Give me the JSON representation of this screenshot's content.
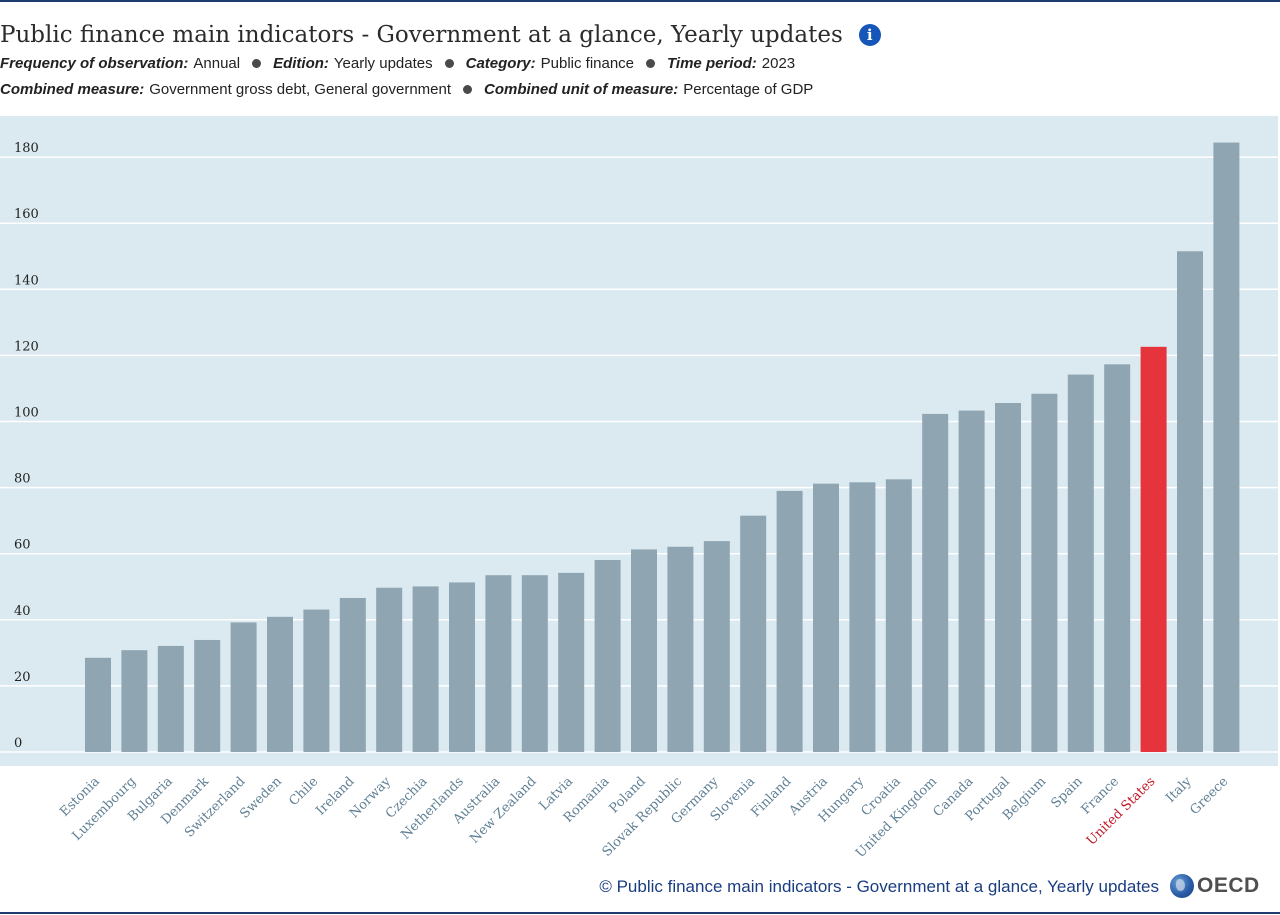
{
  "header": {
    "title": "Public finance main indicators - Government at a glance, Yearly updates",
    "info_icon": "info-icon",
    "filters_row1": [
      {
        "label": "Frequency of observation:",
        "value": "Annual"
      },
      {
        "label": "Edition:",
        "value": "Yearly updates"
      },
      {
        "label": "Category:",
        "value": "Public finance"
      },
      {
        "label": "Time period:",
        "value": "2023"
      }
    ],
    "filters_row2": [
      {
        "label": "Combined measure:",
        "value": "Government gross debt, General government"
      },
      {
        "label": "Combined unit of measure:",
        "value": "Percentage of GDP"
      }
    ]
  },
  "colors": {
    "bar": "#8fa5b2",
    "highlight": "#e6343d",
    "plot_background": "#dbeaf1",
    "gridline": "#ffffff",
    "tick_text": "#222222",
    "category_text": "#5f7f94",
    "highlight_text": "#c01826"
  },
  "chart_data": {
    "type": "bar",
    "title": "Public finance main indicators - Government at a glance, Yearly updates",
    "xlabel": "",
    "ylabel": "",
    "ylim": [
      0,
      186
    ],
    "yticks": [
      0,
      20,
      40,
      60,
      80,
      100,
      120,
      140,
      160,
      180
    ],
    "grid": true,
    "highlight": "United States",
    "categories": [
      "Estonia",
      "Luxembourg",
      "Bulgaria",
      "Denmark",
      "Switzerland",
      "Sweden",
      "Chile",
      "Ireland",
      "Norway",
      "Czechia",
      "Netherlands",
      "Australia",
      "New Zealand",
      "Latvia",
      "Romania",
      "Poland",
      "Slovak Republic",
      "Germany",
      "Slovenia",
      "Finland",
      "Austria",
      "Hungary",
      "Croatia",
      "United Kingdom",
      "Canada",
      "Portugal",
      "Belgium",
      "Spain",
      "France",
      "United States",
      "Italy",
      "Greece"
    ],
    "values": [
      28.5,
      30.8,
      32.1,
      33.9,
      39.2,
      40.9,
      43.1,
      46.6,
      49.7,
      50.1,
      51.3,
      53.5,
      53.5,
      54.2,
      58.1,
      61.3,
      62.1,
      63.8,
      71.5,
      79.0,
      81.2,
      81.6,
      82.5,
      102.3,
      103.3,
      105.6,
      108.4,
      114.2,
      117.3,
      122.6,
      151.5,
      184.4
    ]
  },
  "footer": {
    "copyright": "©  Public finance main indicators - Government at a glance, Yearly updates",
    "logo_text": "OECD",
    "logo_icon": "oecd-globe-icon"
  }
}
